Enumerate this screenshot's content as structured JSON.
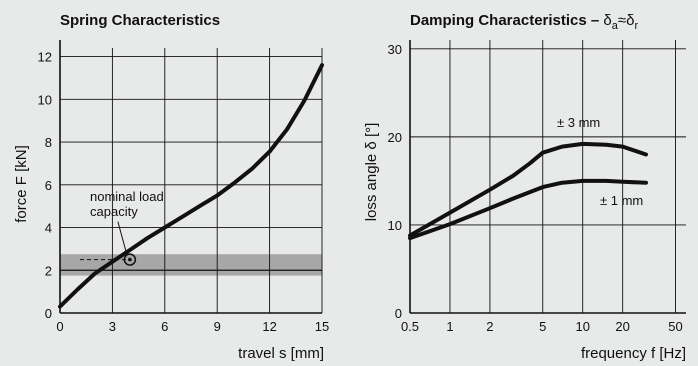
{
  "colors": {
    "background": "#e8e9e9",
    "line": "#111111",
    "band": "#a7a7a7",
    "grid": "#111111"
  },
  "chart_data": [
    {
      "type": "line",
      "title": "Spring Characteristics",
      "xlabel": "travel s [mm]",
      "ylabel": "force F [kN]",
      "xlim": [
        0,
        15
      ],
      "ylim": [
        0,
        12.4
      ],
      "xticks": [
        0,
        3,
        6,
        9,
        12,
        15
      ],
      "yticks": [
        0,
        2,
        4,
        6,
        8,
        10,
        12
      ],
      "x_tick_labels": [
        "0",
        "3",
        "6",
        "9",
        "12",
        "15"
      ],
      "y_tick_labels": [
        "0",
        "2",
        "4",
        "6",
        "8",
        "10",
        "12"
      ],
      "grid": true,
      "series": [
        {
          "x": [
            0,
            1,
            2,
            3,
            4,
            5,
            6,
            7,
            8,
            9,
            10,
            11,
            12,
            13,
            14,
            15
          ],
          "y": [
            0.3,
            1.1,
            1.85,
            2.4,
            2.95,
            3.5,
            4.0,
            4.5,
            5.0,
            5.5,
            6.1,
            6.75,
            7.55,
            8.6,
            9.95,
            11.6
          ]
        }
      ],
      "band": {
        "y_range": [
          1.75,
          2.75
        ],
        "line_y": 2.0
      },
      "nominal_point": {
        "x": 4,
        "y": 2.5
      },
      "annotation": {
        "line1": "nominal load",
        "line2": "capacity"
      }
    },
    {
      "type": "line",
      "title_main": "Damping Characteristics – ",
      "title_symbols": {
        "delta": "δ",
        "sub_a": "a",
        "approx": "≈",
        "sub_r": "r"
      },
      "xlabel": "frequency f [Hz]",
      "ylabel": "loss angle δ [°]",
      "xscale": "log",
      "xlim": [
        0.5,
        60
      ],
      "ylim": [
        0,
        31
      ],
      "xticks": [
        0.5,
        1,
        2,
        5,
        10,
        20,
        50
      ],
      "yticks": [
        0,
        10,
        20,
        30
      ],
      "x_tick_labels": [
        "0.5",
        "1",
        "2",
        "5",
        "10",
        "20",
        "50"
      ],
      "y_tick_labels": [
        "0",
        "10",
        "20",
        "30"
      ],
      "grid": true,
      "series": [
        {
          "name": "± 3 mm",
          "x": [
            0.5,
            1,
            2,
            3,
            4,
            5,
            7,
            10,
            15,
            20,
            30
          ],
          "y": [
            8.8,
            11.4,
            14.0,
            15.6,
            17.0,
            18.2,
            18.9,
            19.2,
            19.1,
            18.9,
            18.0
          ]
        },
        {
          "name": "± 1 mm",
          "x": [
            0.5,
            1,
            2,
            3,
            5,
            7,
            10,
            15,
            20,
            30
          ],
          "y": [
            8.5,
            10.1,
            11.9,
            13.0,
            14.3,
            14.8,
            15.0,
            15.0,
            14.9,
            14.8
          ]
        }
      ]
    }
  ]
}
